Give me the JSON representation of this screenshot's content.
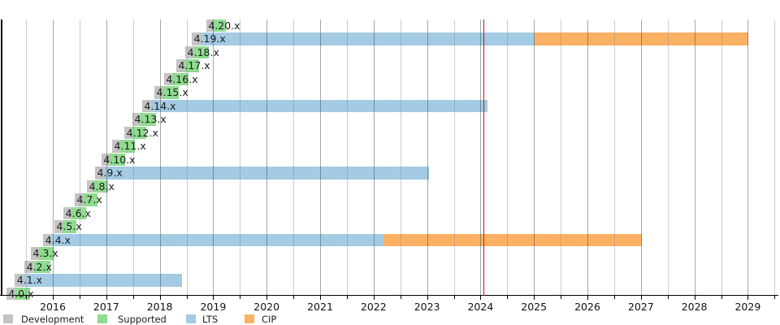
{
  "colors": {
    "development": "#c4c4c4",
    "supported": "#8fdb8f",
    "lts": "#a3cbe3",
    "cip": "#fbb163",
    "today_line": "#c41414",
    "grid_year": "rgba(60,60,60,0.45)",
    "grid_half": "rgba(135,135,135,0.42)",
    "axis": "#000000",
    "label_text": "#1c1c1c",
    "tick_text": "#111111"
  },
  "legend": [
    {
      "phase": "development",
      "label": "Development"
    },
    {
      "phase": "supported",
      "label": "Supported"
    },
    {
      "phase": "lts",
      "label": "LTS"
    },
    {
      "phase": "cip",
      "label": "CIP"
    }
  ],
  "chart_data": {
    "type": "gantt",
    "title": "",
    "time_unit": "decimal_year",
    "x_axis": {
      "min": 2015.03,
      "max": 2029.56,
      "grid_interval": 0.5,
      "year_tick_labels": [
        "2016",
        "2017",
        "2018",
        "2019",
        "2020",
        "2021",
        "2022",
        "2023",
        "2024",
        "2025",
        "2026",
        "2027",
        "2028",
        "2029"
      ]
    },
    "today_marker": {
      "position": 2024.05
    },
    "rows": [
      {
        "version": "4.20.x",
        "segments": [
          {
            "phase": "development",
            "start": 2018.87,
            "end": 2018.99
          },
          {
            "phase": "supported",
            "start": 2018.99,
            "end": 2019.24
          }
        ]
      },
      {
        "version": "4.19.x",
        "segments": [
          {
            "phase": "development",
            "start": 2018.6,
            "end": 2018.78
          },
          {
            "phase": "lts",
            "start": 2018.78,
            "end": 2025.01
          },
          {
            "phase": "cip",
            "start": 2025.01,
            "end": 2029.01
          }
        ]
      },
      {
        "version": "4.18.x",
        "segments": [
          {
            "phase": "development",
            "start": 2018.48,
            "end": 2018.63
          },
          {
            "phase": "supported",
            "start": 2018.63,
            "end": 2018.92
          }
        ]
      },
      {
        "version": "4.17.x",
        "segments": [
          {
            "phase": "development",
            "start": 2018.31,
            "end": 2018.46
          },
          {
            "phase": "supported",
            "start": 2018.46,
            "end": 2018.74
          }
        ]
      },
      {
        "version": "4.16.x",
        "segments": [
          {
            "phase": "development",
            "start": 2018.08,
            "end": 2018.23
          },
          {
            "phase": "supported",
            "start": 2018.23,
            "end": 2018.54
          }
        ]
      },
      {
        "version": "4.15.x",
        "segments": [
          {
            "phase": "development",
            "start": 2017.9,
            "end": 2018.05
          },
          {
            "phase": "supported",
            "start": 2018.05,
            "end": 2018.36
          }
        ]
      },
      {
        "version": "4.14.x",
        "segments": [
          {
            "phase": "development",
            "start": 2017.67,
            "end": 2017.84
          },
          {
            "phase": "lts",
            "start": 2017.84,
            "end": 2024.13
          }
        ]
      },
      {
        "version": "4.13.x",
        "segments": [
          {
            "phase": "development",
            "start": 2017.49,
            "end": 2017.63
          },
          {
            "phase": "supported",
            "start": 2017.63,
            "end": 2017.93
          }
        ]
      },
      {
        "version": "4.12.x",
        "segments": [
          {
            "phase": "development",
            "start": 2017.34,
            "end": 2017.47
          },
          {
            "phase": "supported",
            "start": 2017.47,
            "end": 2017.75
          }
        ]
      },
      {
        "version": "4.11.x",
        "segments": [
          {
            "phase": "development",
            "start": 2017.11,
            "end": 2017.26
          },
          {
            "phase": "supported",
            "start": 2017.26,
            "end": 2017.53
          }
        ]
      },
      {
        "version": "4.10.x",
        "segments": [
          {
            "phase": "development",
            "start": 2016.91,
            "end": 2017.06
          },
          {
            "phase": "supported",
            "start": 2017.06,
            "end": 2017.35
          }
        ]
      },
      {
        "version": "4.9.x",
        "segments": [
          {
            "phase": "development",
            "start": 2016.79,
            "end": 2016.94
          },
          {
            "phase": "lts",
            "start": 2016.94,
            "end": 2023.04
          }
        ]
      },
      {
        "version": "4.8.x",
        "segments": [
          {
            "phase": "development",
            "start": 2016.64,
            "end": 2016.76
          },
          {
            "phase": "supported",
            "start": 2016.76,
            "end": 2017.03
          }
        ]
      },
      {
        "version": "4.7.x",
        "segments": [
          {
            "phase": "development",
            "start": 2016.41,
            "end": 2016.56
          },
          {
            "phase": "supported",
            "start": 2016.56,
            "end": 2016.84
          }
        ]
      },
      {
        "version": "4.6.x",
        "segments": [
          {
            "phase": "development",
            "start": 2016.2,
            "end": 2016.35
          },
          {
            "phase": "supported",
            "start": 2016.35,
            "end": 2016.62
          }
        ]
      },
      {
        "version": "4.5.x",
        "segments": [
          {
            "phase": "development",
            "start": 2016.03,
            "end": 2016.18
          },
          {
            "phase": "supported",
            "start": 2016.18,
            "end": 2016.44
          }
        ]
      },
      {
        "version": "4.4.x",
        "segments": [
          {
            "phase": "development",
            "start": 2015.82,
            "end": 2015.97
          },
          {
            "phase": "lts",
            "start": 2015.97,
            "end": 2022.19
          },
          {
            "phase": "cip",
            "start": 2022.19,
            "end": 2027.02
          }
        ]
      },
      {
        "version": "4.3.x",
        "segments": [
          {
            "phase": "development",
            "start": 2015.59,
            "end": 2015.74
          },
          {
            "phase": "supported",
            "start": 2015.74,
            "end": 2016.02
          }
        ]
      },
      {
        "version": "4.2.x",
        "segments": [
          {
            "phase": "development",
            "start": 2015.47,
            "end": 2015.65
          },
          {
            "phase": "supported",
            "start": 2015.65,
            "end": 2015.95
          }
        ]
      },
      {
        "version": "4.1.x",
        "segments": [
          {
            "phase": "development",
            "start": 2015.29,
            "end": 2015.44
          },
          {
            "phase": "lts",
            "start": 2015.44,
            "end": 2018.42
          }
        ]
      },
      {
        "version": "4.0.x",
        "segments": [
          {
            "phase": "development",
            "start": 2015.13,
            "end": 2015.29
          },
          {
            "phase": "supported",
            "start": 2015.29,
            "end": 2015.57
          }
        ]
      }
    ]
  }
}
